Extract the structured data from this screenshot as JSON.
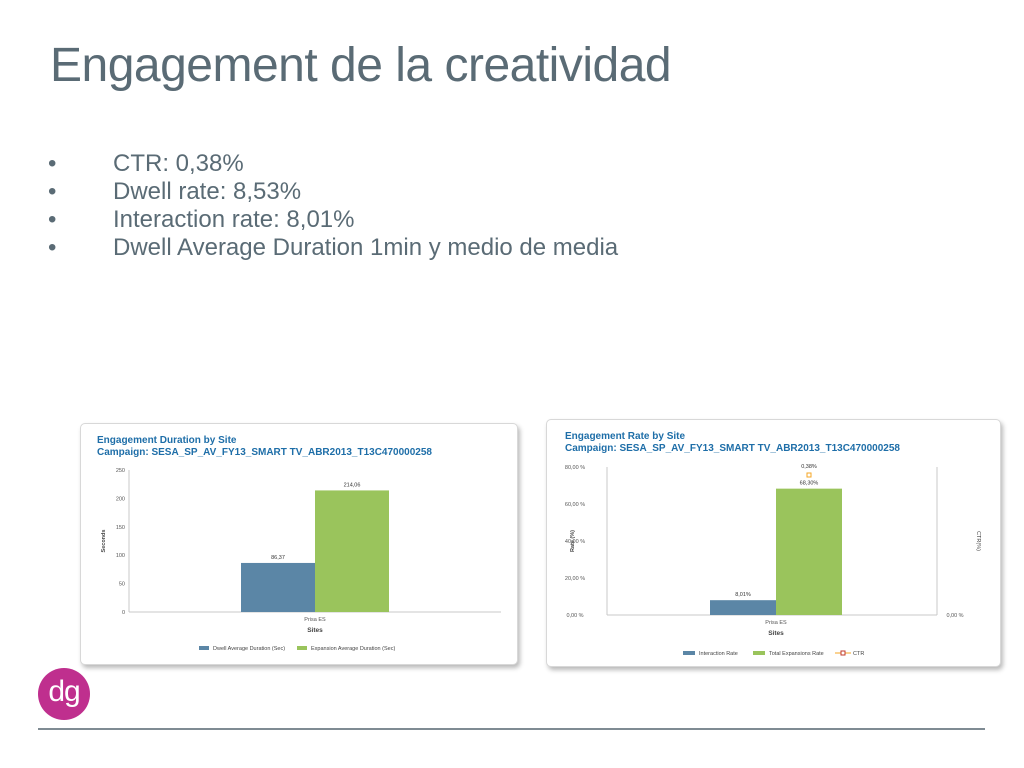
{
  "slide": {
    "title": "Engagement de la creatividad",
    "bullet_marker": "•",
    "bullets": [
      "CTR: 0,38%",
      "Dwell rate: 8,53%",
      "Interaction rate: 8,01%",
      "Dwell Average Duration 1min y medio de media"
    ],
    "logo_text": "dg"
  },
  "colors": {
    "text": "#5a6b75",
    "panel_title": "#1e6ea8",
    "dwell": "#5b86a6",
    "expansion": "#9ac45c",
    "logo": "#bf2f8e"
  },
  "chart_data": [
    {
      "type": "bar",
      "title": "Engagement Duration by Site",
      "subtitle": "Campaign: SESA_SP_AV_FY13_SMART TV_ABR2013_T13C470000258",
      "xlabel": "Sites",
      "ylabel": "Seconds",
      "categories": [
        "Prisa ES"
      ],
      "ylim": [
        0,
        250
      ],
      "yticks": [
        0,
        50,
        100,
        150,
        200,
        250
      ],
      "ytick_labels": [
        "0",
        "50",
        "100",
        "150",
        "200",
        "250"
      ],
      "series": [
        {
          "name": "Dwell Average Duration (Sec)",
          "values": [
            86.37
          ],
          "labels": [
            "86,37"
          ],
          "color": "#5b86a6"
        },
        {
          "name": "Expansion Average Duration (Sec)",
          "values": [
            214.06
          ],
          "labels": [
            "214,06"
          ],
          "color": "#9ac45c"
        }
      ],
      "grid": false,
      "legend": "bottom"
    },
    {
      "type": "bar",
      "title": "Engagement Rate by Site",
      "subtitle": "Campaign: SESA_SP_AV_FY13_SMART TV_ABR2013_T13C470000258",
      "xlabel": "Sites",
      "ylabel": "Rate (%)",
      "y2label": "CTR(%)",
      "categories": [
        "Prisa ES"
      ],
      "ylim": [
        0,
        80
      ],
      "yticks": [
        0,
        20,
        40,
        60,
        80
      ],
      "ytick_labels": [
        "0,00 %",
        "20,00 %",
        "40,00 %",
        "60,00 %",
        "80,00 %"
      ],
      "y2ticks_labels": [
        "0,00 %"
      ],
      "series": [
        {
          "name": "Interaction Rate",
          "values": [
            8.01
          ],
          "labels": [
            "8,01%"
          ],
          "color": "#5b86a6"
        },
        {
          "name": "Total Expansions Rate",
          "values": [
            68.3
          ],
          "labels": [
            "68,30%"
          ],
          "color": "#9ac45c"
        },
        {
          "name": "CTR",
          "values": [
            0.38
          ],
          "labels": [
            "0,38%"
          ],
          "color": "#f5a623",
          "marker": true
        }
      ],
      "grid": false,
      "legend": "bottom"
    }
  ]
}
